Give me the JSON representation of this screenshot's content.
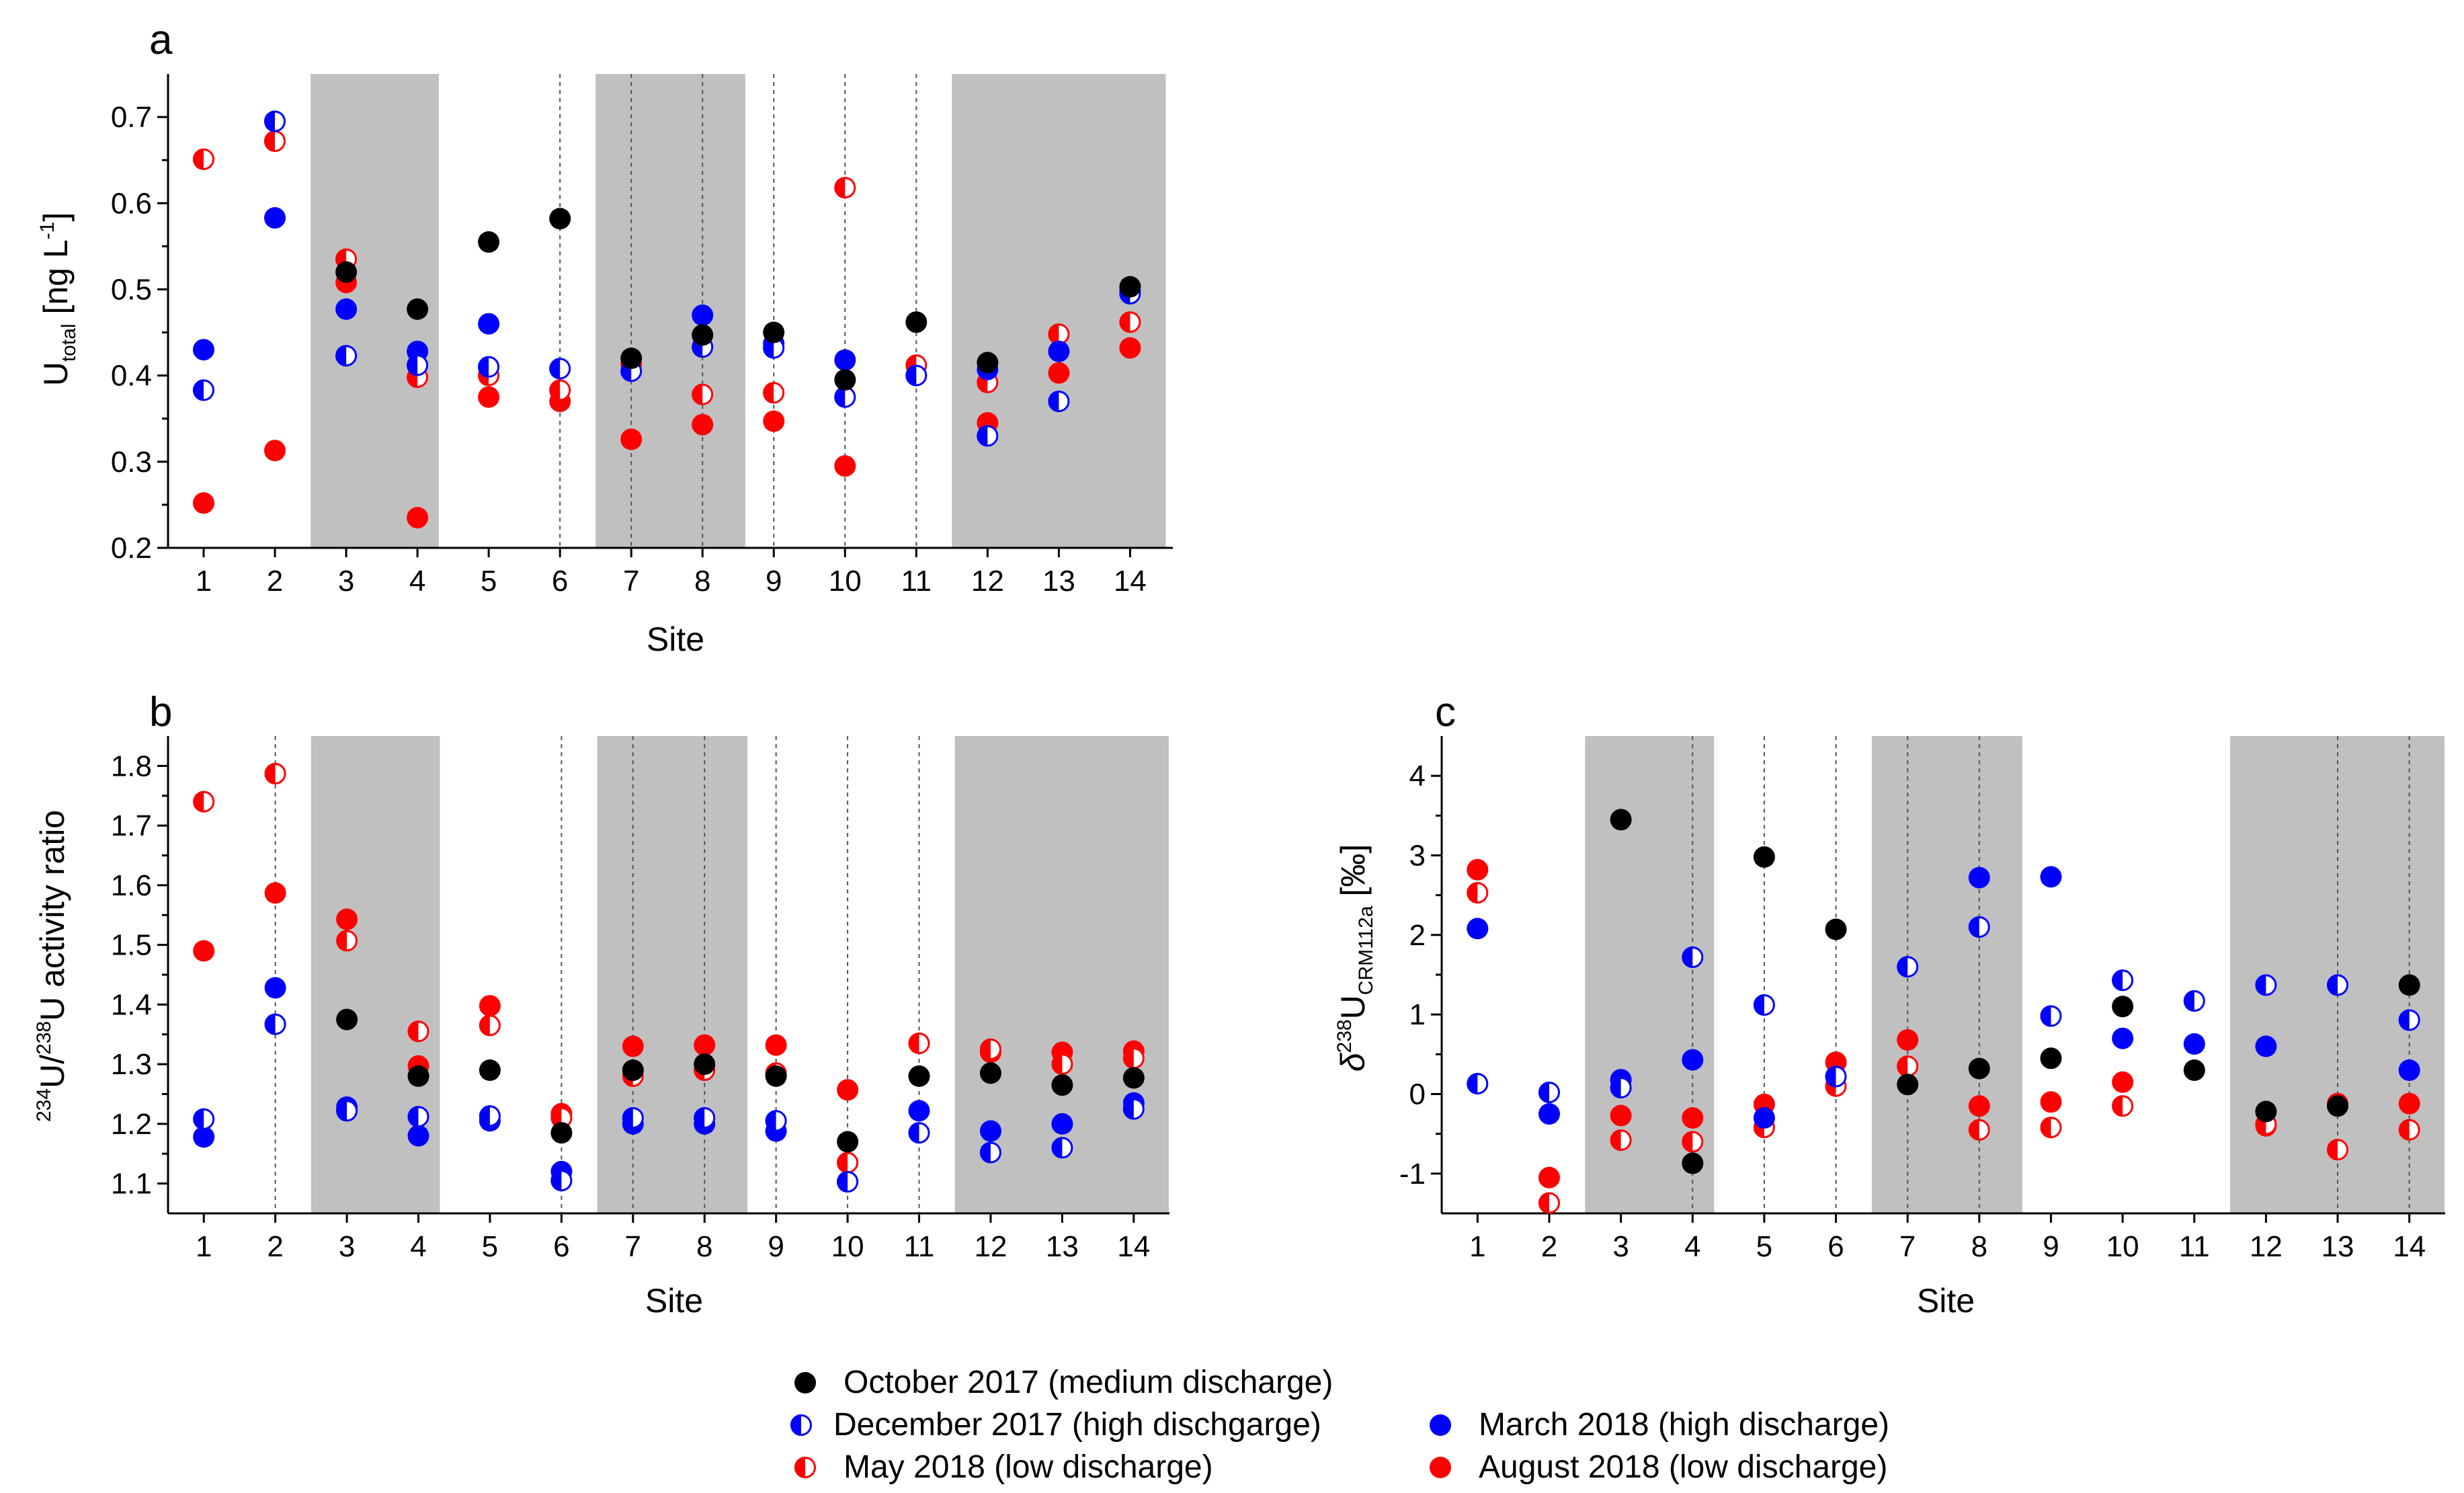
{
  "legend": [
    {
      "key": "oct",
      "label": "October 2017 (medium discharge)"
    },
    {
      "key": "dec",
      "label": "December 2017 (high dischgarge)"
    },
    {
      "key": "mar",
      "label": "March 2018 (high discharge)"
    },
    {
      "key": "may",
      "label": "May 2018 (low discharge)"
    },
    {
      "key": "aug",
      "label": "August 2018 (low discharge)"
    }
  ],
  "colors": {
    "oct": "#000000",
    "blue": "#0000ff",
    "red": "#ff0000",
    "shade": "#c0c0c0"
  },
  "chart_data": [
    {
      "id": "a",
      "type": "scatter",
      "panel_label": "a",
      "xlabel": "Site",
      "ylabel_main": "U",
      "ylabel_sub": "total",
      "ylabel_unit_pre": " [ng L",
      "ylabel_unit_sup": "-1",
      "ylabel_unit_post": "]",
      "xlim": [
        0.5,
        14.6
      ],
      "ylim": [
        0.2,
        0.75
      ],
      "xticks": [
        1,
        2,
        3,
        4,
        5,
        6,
        7,
        8,
        9,
        10,
        11,
        12,
        13,
        14
      ],
      "yticks": [
        0.2,
        0.3,
        0.4,
        0.5,
        0.6,
        0.7
      ],
      "ytick_labels": [
        "0.2",
        "0.3",
        "0.4",
        "0.5",
        "0.6",
        "0.7"
      ],
      "shaded_ranges": [
        [
          2.5,
          4.3
        ],
        [
          6.5,
          8.6
        ],
        [
          11.5,
          14.5
        ]
      ],
      "dashed_sites": [
        6,
        7,
        8,
        9,
        10,
        11
      ],
      "series": [
        {
          "name": "October 2017 (medium discharge)",
          "key": "oct",
          "sites": [
            3,
            4,
            5,
            6,
            7,
            8,
            9,
            10,
            11,
            12,
            14
          ],
          "values": [
            0.52,
            0.477,
            0.555,
            0.582,
            0.42,
            0.447,
            0.45,
            0.395,
            0.462,
            0.415,
            0.503
          ]
        },
        {
          "name": "December 2017 (high dischgarge)",
          "key": "dec",
          "sites": [
            1,
            2,
            3,
            4,
            5,
            6,
            7,
            8,
            9,
            10,
            11,
            12,
            13,
            14
          ],
          "values": [
            0.383,
            0.695,
            0.423,
            0.412,
            0.41,
            0.408,
            0.405,
            0.433,
            0.432,
            0.375,
            0.4,
            0.33,
            0.37,
            0.495
          ]
        },
        {
          "name": "March 2018 (high discharge)",
          "key": "mar",
          "sites": [
            1,
            2,
            3,
            4,
            5,
            8,
            9,
            10,
            12,
            13,
            14
          ],
          "values": [
            0.43,
            0.583,
            0.477,
            0.428,
            0.46,
            0.47,
            0.437,
            0.418,
            0.407,
            0.428,
            0.498
          ]
        },
        {
          "name": "May 2018 (low discharge)",
          "key": "may",
          "sites": [
            1,
            2,
            3,
            4,
            5,
            6,
            7,
            8,
            9,
            10,
            11,
            12,
            13,
            14
          ],
          "values": [
            0.651,
            0.672,
            0.535,
            0.398,
            0.4,
            0.383,
            0.413,
            0.378,
            0.38,
            0.618,
            0.412,
            0.392,
            0.448,
            0.462
          ]
        },
        {
          "name": "August 2018 (low discharge)",
          "key": "aug",
          "sites": [
            1,
            2,
            3,
            4,
            5,
            6,
            7,
            8,
            9,
            10,
            12,
            13,
            14
          ],
          "values": [
            0.252,
            0.313,
            0.508,
            0.235,
            0.375,
            0.37,
            0.326,
            0.343,
            0.347,
            0.295,
            0.345,
            0.403,
            0.432
          ]
        }
      ]
    },
    {
      "id": "b",
      "type": "scatter",
      "panel_label": "b",
      "xlabel": "Site",
      "ylabel_sup1": "234",
      "ylabel_mid": "U/",
      "ylabel_sup2": "238",
      "ylabel_rest": "U activity ratio",
      "xlim": [
        0.5,
        14.5
      ],
      "ylim": [
        1.05,
        1.85
      ],
      "xticks": [
        1,
        2,
        3,
        4,
        5,
        6,
        7,
        8,
        9,
        10,
        11,
        12,
        13,
        14
      ],
      "yticks": [
        1.1,
        1.2,
        1.3,
        1.4,
        1.5,
        1.6,
        1.7,
        1.8
      ],
      "ytick_labels": [
        "1.1",
        "1.2",
        "1.3",
        "1.4",
        "1.5",
        "1.6",
        "1.7",
        "1.8"
      ],
      "shaded_ranges": [
        [
          2.5,
          4.3
        ],
        [
          6.5,
          8.6
        ],
        [
          11.5,
          14.5
        ]
      ],
      "dashed_sites": [
        2,
        6,
        7,
        8,
        9,
        10,
        11
      ],
      "series": [
        {
          "name": "October 2017 (medium discharge)",
          "key": "oct",
          "sites": [
            3,
            4,
            5,
            6,
            7,
            8,
            9,
            10,
            11,
            12,
            13,
            14
          ],
          "values": [
            1.375,
            1.28,
            1.29,
            1.185,
            1.29,
            1.3,
            1.28,
            1.17,
            1.28,
            1.285,
            1.265,
            1.277
          ]
        },
        {
          "name": "December 2017 (high dischgarge)",
          "key": "dec",
          "sites": [
            1,
            2,
            3,
            4,
            5,
            6,
            7,
            8,
            9,
            10,
            11,
            12,
            13,
            14
          ],
          "values": [
            1.208,
            1.367,
            1.222,
            1.212,
            1.213,
            1.105,
            1.21,
            1.21,
            1.205,
            1.103,
            1.185,
            1.152,
            1.16,
            1.225
          ]
        },
        {
          "name": "March 2018 (high discharge)",
          "key": "mar",
          "sites": [
            1,
            2,
            3,
            4,
            5,
            6,
            7,
            8,
            9,
            10,
            11,
            12,
            13,
            14
          ],
          "values": [
            1.178,
            1.428,
            1.228,
            1.18,
            1.205,
            1.12,
            1.2,
            1.2,
            1.188,
            1.103,
            1.222,
            1.188,
            1.2,
            1.235
          ]
        },
        {
          "name": "May 2018 (low discharge)",
          "key": "may",
          "sites": [
            1,
            2,
            3,
            4,
            5,
            6,
            7,
            8,
            9,
            10,
            11,
            12,
            13,
            14
          ],
          "values": [
            1.74,
            1.787,
            1.507,
            1.355,
            1.365,
            1.21,
            1.28,
            1.29,
            1.285,
            1.135,
            1.335,
            1.325,
            1.3,
            1.31
          ]
        },
        {
          "name": "August 2018 (low discharge)",
          "key": "aug",
          "sites": [
            1,
            2,
            3,
            4,
            5,
            6,
            7,
            8,
            9,
            10,
            12,
            13,
            14
          ],
          "values": [
            1.49,
            1.587,
            1.543,
            1.297,
            1.398,
            1.217,
            1.33,
            1.332,
            1.332,
            1.257,
            1.32,
            1.32,
            1.322
          ]
        }
      ]
    },
    {
      "id": "c",
      "type": "scatter",
      "panel_label": "c",
      "xlabel": "Site",
      "ylabel_delta": "δ",
      "ylabel_sup": "238",
      "ylabel_main": "U",
      "ylabel_sub": "CRM112a",
      "ylabel_unit": " [‰]",
      "xlim": [
        0.5,
        14.5
      ],
      "ylim": [
        -1.5,
        4.5
      ],
      "xticks": [
        1,
        2,
        3,
        4,
        5,
        6,
        7,
        8,
        9,
        10,
        11,
        12,
        13,
        14
      ],
      "yticks": [
        -1,
        0,
        1,
        2,
        3,
        4
      ],
      "ytick_labels": [
        "-1",
        "0",
        "1",
        "2",
        "3",
        "4"
      ],
      "shaded_ranges": [
        [
          2.5,
          4.3
        ],
        [
          6.5,
          8.6
        ],
        [
          11.5,
          14.5
        ]
      ],
      "dashed_sites": [
        4,
        5,
        6,
        7,
        8,
        13,
        14
      ],
      "series": [
        {
          "name": "October 2017 (medium discharge)",
          "key": "oct",
          "sites": [
            3,
            4,
            5,
            6,
            7,
            8,
            9,
            10,
            11,
            12,
            13,
            14
          ],
          "values": [
            3.45,
            -0.87,
            2.98,
            2.07,
            0.12,
            0.32,
            0.45,
            1.1,
            0.3,
            -0.22,
            -0.15,
            1.37
          ]
        },
        {
          "name": "December 2017 (high dischgarge)",
          "key": "dec",
          "sites": [
            1,
            2,
            3,
            4,
            5,
            6,
            7,
            8,
            9,
            10,
            11,
            12,
            13,
            14
          ],
          "values": [
            0.13,
            0.02,
            0.08,
            1.72,
            1.12,
            0.22,
            1.6,
            2.1,
            0.98,
            1.43,
            1.17,
            1.37,
            1.37,
            0.93
          ]
        },
        {
          "name": "March 2018 (high discharge)",
          "key": "mar",
          "sites": [
            1,
            2,
            3,
            4,
            5,
            8,
            9,
            10,
            11,
            12,
            14
          ],
          "values": [
            2.08,
            -0.25,
            0.18,
            0.43,
            -0.3,
            2.72,
            2.73,
            0.7,
            0.63,
            0.6,
            0.3
          ]
        },
        {
          "name": "May 2018 (low discharge)",
          "key": "may",
          "sites": [
            1,
            2,
            3,
            4,
            5,
            6,
            7,
            8,
            9,
            10,
            12,
            13,
            14
          ],
          "values": [
            2.53,
            -1.37,
            -0.58,
            -0.6,
            -0.42,
            0.1,
            0.35,
            -0.45,
            -0.42,
            -0.15,
            -0.38,
            -0.7,
            -0.45
          ]
        },
        {
          "name": "August 2018 (low discharge)",
          "key": "aug",
          "sites": [
            1,
            2,
            3,
            4,
            5,
            6,
            7,
            8,
            9,
            10,
            12,
            13,
            14
          ],
          "values": [
            2.82,
            -1.05,
            -0.27,
            -0.3,
            -0.13,
            0.4,
            0.68,
            -0.15,
            -0.1,
            0.15,
            -0.4,
            -0.12,
            -0.12
          ]
        }
      ]
    }
  ]
}
